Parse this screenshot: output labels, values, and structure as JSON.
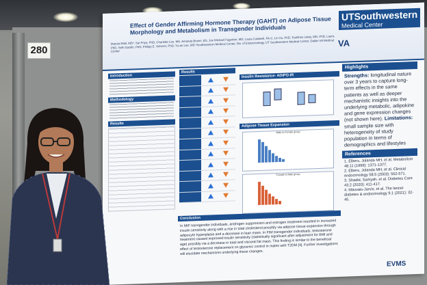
{
  "board": {
    "number": "280"
  },
  "poster": {
    "title": "Effect of Gender Affirming Hormone Therapy (GAHT) on Adipose Tissue Morphology and Metabolism in Transgender Individuals",
    "authors": "Manasi Mali, MD*, Sai Priya, PhD, Charlotte Lee, MA, Amanda Brown, BS, Joe Michael Fagerber, MD, Laura Caldwell, PA-C, Lin Xu, PhD, Toshihiro Ueda, MD, PhD, Laura, PhD, Seth Gardin, PhD, Philipp E. Scherer, PhD, Yu-an Lee, MD  ¹Southwestern Medical Center, Div. of Endocrinology, UT Southwestern Medical Center, Dallas VA Medical Center",
    "logo_ut_main": "UTSouthwestern",
    "logo_ut_sub": "Medical Center",
    "logo_va": "VA",
    "sections": {
      "intro": "Introduction",
      "methods": "Methodology",
      "results_left": "Results",
      "results_mid": "Results",
      "insulin": "Insulin Resistance- ADIPO-IR",
      "adipose": "Adipose Tissue Expansion",
      "conclusion": "Conclusion"
    },
    "chart_labels": {
      "male_group": "Male to Female group",
      "female_group": "Female to Male group"
    },
    "highlights": {
      "heading": "Highlights",
      "strengths_label": "Strengths:",
      "strengths_text": " longitudinal nature over 3 years to capture long-term effects in the same patients as well as deeper mechanistic insights into the underlying metabolic, adipokine and gene expression changes (not shown here).",
      "limitations_label": "Limitations:",
      "limitations_text": " small sample size with heterogeneity of study population in terms of demographics and lifestyles"
    },
    "references": {
      "heading": "References",
      "items": [
        "1. Elbers, Jolanda MH, et al. Metabolism 48.11 (1999): 1371-1377.",
        "2. Elbers, Jolanda MH, et al. Clinical endocrinology 58.5 (2003): 562-571.",
        "3. Shadid, Samyah, et al. Diabetes Care 43.2 (2020): 411-417.",
        "4. Mauvais-Jarvis, et al. The lancet diabetes & endocrinology 9.1 (2021): 32-45."
      ]
    },
    "conclusion_text": "In MtF transgender individuals, androgen suppression and estrogen treatment resulted in increased insulin sensitivity along with a rise in total cholesterol possibly via adipose tissue expansion through adipocyte hyperplasia and a decrease in lean mass. In FtM transgender individuals, testosterone treatment caused improved insulin sensitivity (statistically significant after adjustment for BMI and age) possibly via a decrease in total and visceral fat mass. This finding is similar to the beneficial effect of testosterone replacement on glycemic control in males with T2DM [4]. Further investigations will elucidate mechanisms underlying these changes.",
    "footer_logo": "EVMS"
  },
  "colors": {
    "poster_blue": "#1b4f8f",
    "arrow_up": "#2a6fd4",
    "arrow_down": "#e07a33"
  }
}
